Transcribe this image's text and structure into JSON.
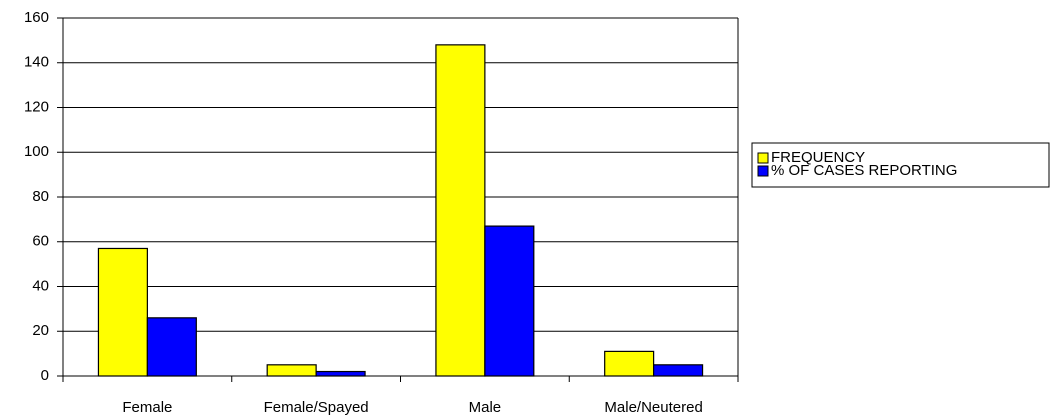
{
  "chart_data": {
    "type": "bar",
    "categories": [
      "Female",
      "Female/Spayed",
      "Male",
      "Male/Neutered"
    ],
    "series": [
      {
        "name": "FREQUENCY",
        "color": "#ffff00",
        "values": [
          57,
          5,
          148,
          11
        ]
      },
      {
        "name": "% OF CASES REPORTING",
        "color": "#0000ff",
        "values": [
          26,
          2,
          67,
          5
        ]
      }
    ],
    "ylim": [
      0,
      160
    ],
    "yticks": [
      0,
      20,
      40,
      60,
      80,
      100,
      120,
      140,
      160
    ],
    "grid": true,
    "legend": "right"
  }
}
